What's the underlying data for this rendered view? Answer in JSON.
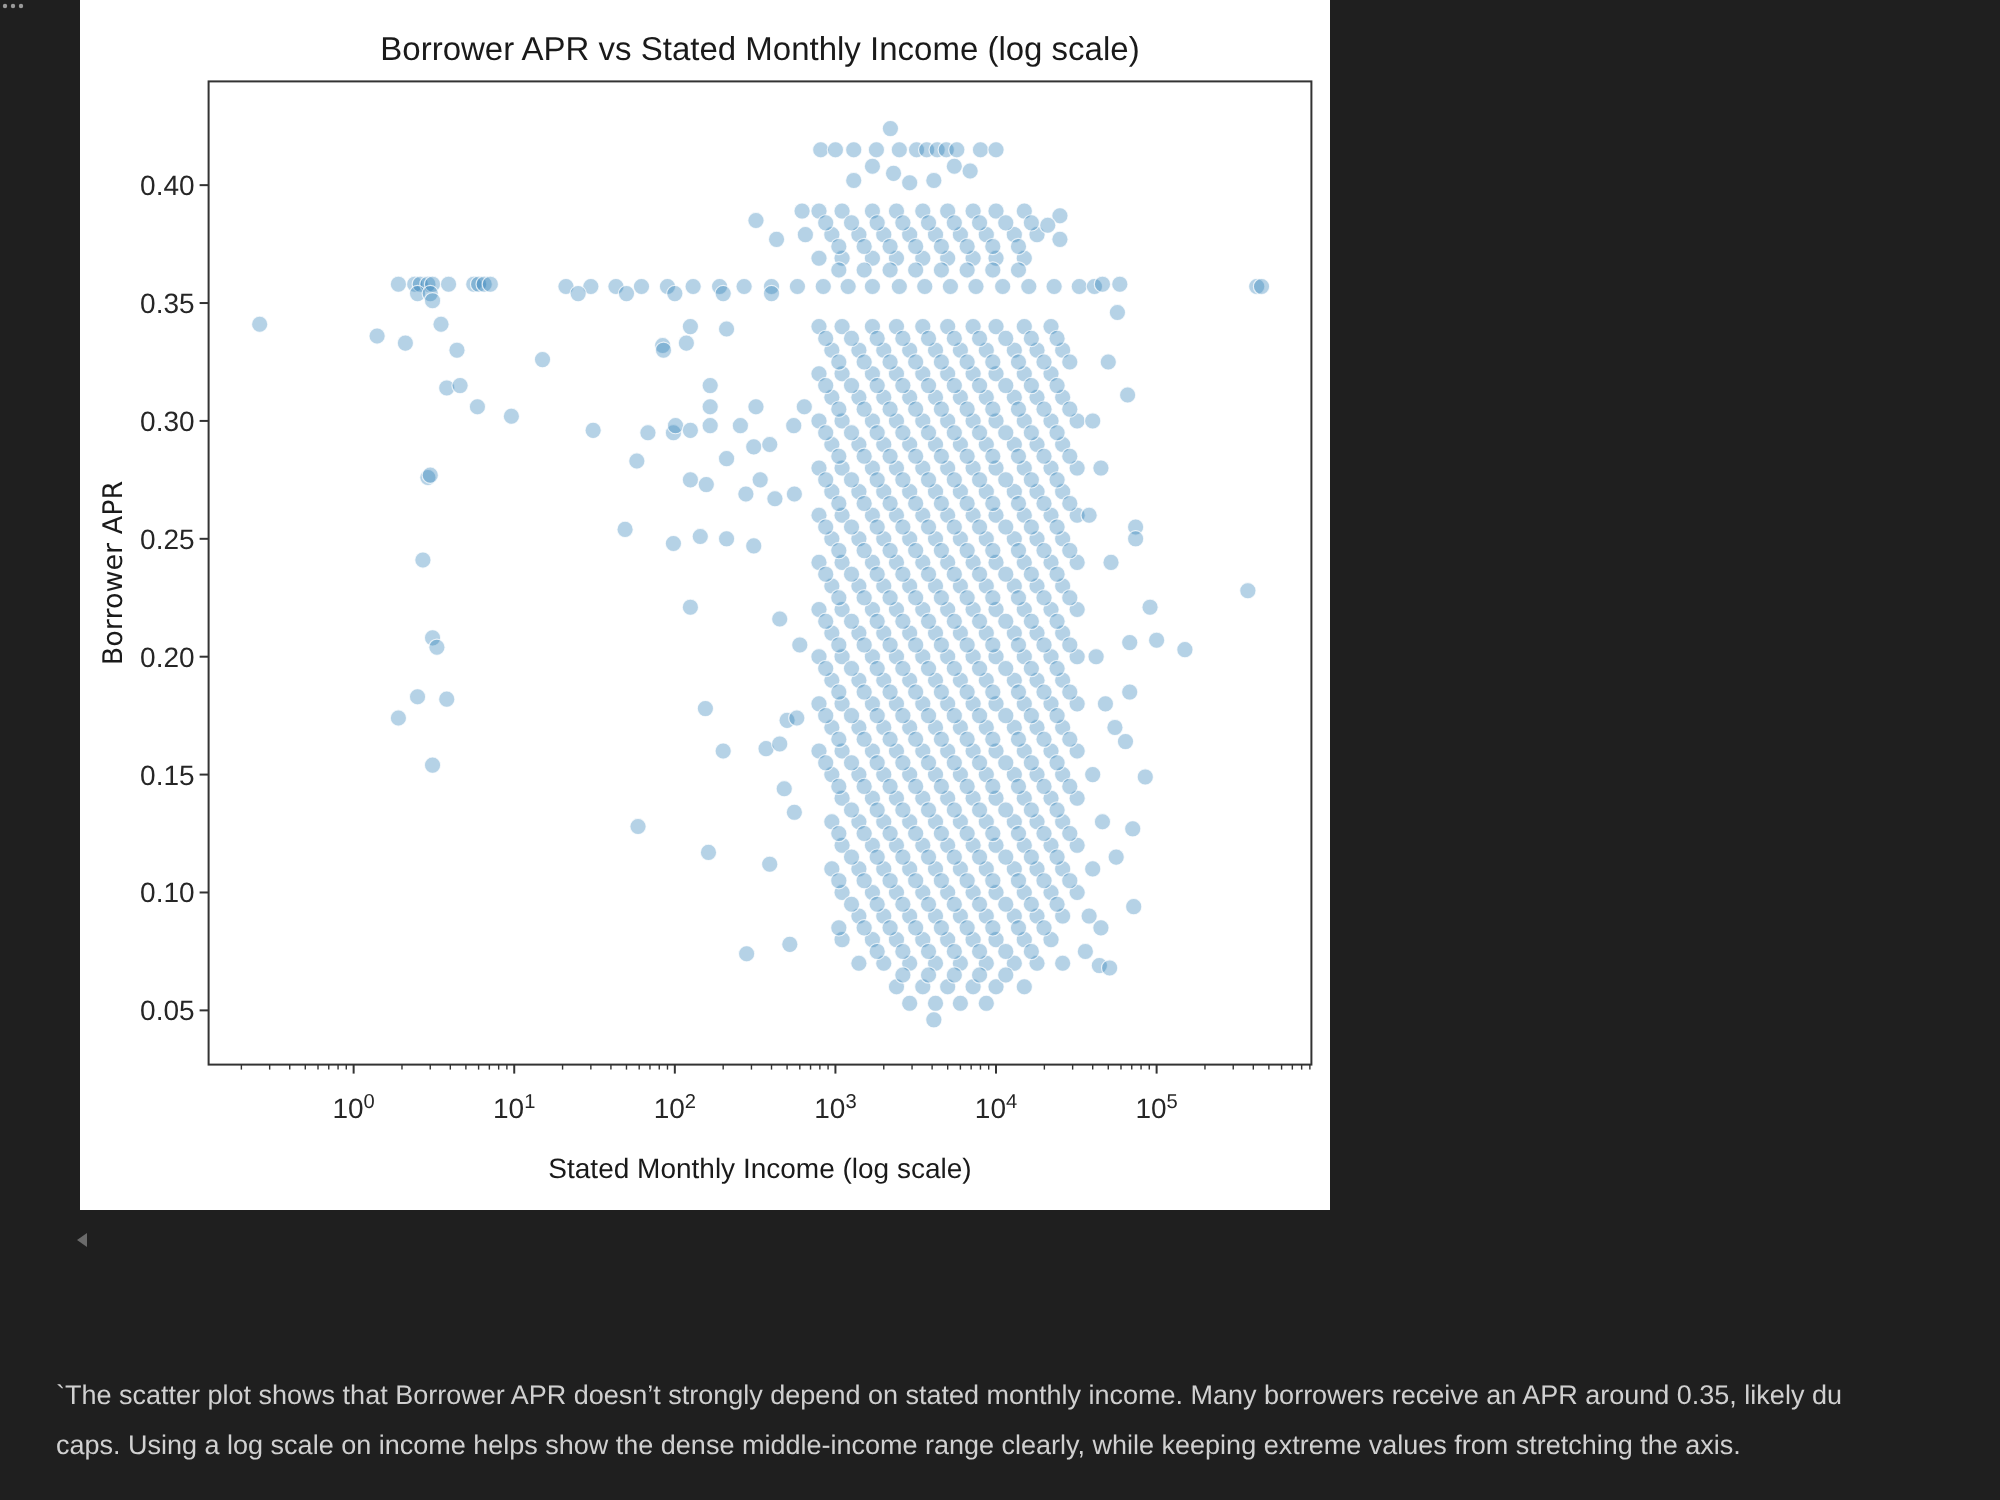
{
  "chart_data": {
    "type": "scatter",
    "title": "Borrower APR vs Stated Monthly Income (log scale)",
    "xlabel": "Stated Monthly Income (log scale)",
    "ylabel": "Borrower APR",
    "annotations": [
      "`The scatter plot shows that Borrower APR doesn’t strongly depend on stated monthly income. Many borrowers receive an APR around 0.35, likely du",
      "caps. Using a log scale on income helps show the dense middle-income range clearly, while keeping extreme values from stretching the axis."
    ],
    "log": "x",
    "marker": "circle",
    "color": "#1f77b4",
    "xlim": [
      0.125,
      920000
    ],
    "ylim": [
      0.027,
      0.444
    ],
    "xticks": [
      {
        "value": 0.2,
        "label": null
      },
      {
        "value": 0.3,
        "label": null
      },
      {
        "value": 0.4,
        "label": null
      },
      {
        "value": 0.5,
        "label": null
      },
      {
        "value": 0.6,
        "label": null
      },
      {
        "value": 0.7,
        "label": null
      },
      {
        "value": 0.8,
        "label": null
      },
      {
        "value": 0.9,
        "label": null
      },
      {
        "value": 1,
        "label": "10$^{0}$"
      },
      {
        "value": 2,
        "label": null
      },
      {
        "value": 3,
        "label": null
      },
      {
        "value": 4,
        "label": null
      },
      {
        "value": 5,
        "label": null
      },
      {
        "value": 6,
        "label": null
      },
      {
        "value": 7,
        "label": null
      },
      {
        "value": 8,
        "label": null
      },
      {
        "value": 9,
        "label": null
      },
      {
        "value": 10,
        "label": "10$^{1}$"
      },
      {
        "value": 20,
        "label": null
      },
      {
        "value": 30,
        "label": null
      },
      {
        "value": 40,
        "label": null
      },
      {
        "value": 50,
        "label": null
      },
      {
        "value": 60,
        "label": null
      },
      {
        "value": 70,
        "label": null
      },
      {
        "value": 80,
        "label": null
      },
      {
        "value": 90,
        "label": null
      },
      {
        "value": 100,
        "label": "10$^{2}$"
      },
      {
        "value": 200,
        "label": null
      },
      {
        "value": 300,
        "label": null
      },
      {
        "value": 400,
        "label": null
      },
      {
        "value": 500,
        "label": null
      },
      {
        "value": 600,
        "label": null
      },
      {
        "value": 700,
        "label": null
      },
      {
        "value": 800,
        "label": null
      },
      {
        "value": 900,
        "label": null
      },
      {
        "value": 1000,
        "label": "10$^{3}$"
      },
      {
        "value": 2000,
        "label": null
      },
      {
        "value": 3000,
        "label": null
      },
      {
        "value": 4000,
        "label": null
      },
      {
        "value": 5000,
        "label": null
      },
      {
        "value": 6000,
        "label": null
      },
      {
        "value": 7000,
        "label": null
      },
      {
        "value": 8000,
        "label": null
      },
      {
        "value": 9000,
        "label": null
      },
      {
        "value": 10000,
        "label": "10$^{4}$"
      },
      {
        "value": 20000,
        "label": null
      },
      {
        "value": 30000,
        "label": null
      },
      {
        "value": 40000,
        "label": null
      },
      {
        "value": 50000,
        "label": null
      },
      {
        "value": 60000,
        "label": null
      },
      {
        "value": 70000,
        "label": null
      },
      {
        "value": 80000,
        "label": null
      },
      {
        "value": 90000,
        "label": null
      },
      {
        "value": 100000,
        "label": "10$^{5}$"
      },
      {
        "value": 200000,
        "label": null
      },
      {
        "value": 300000,
        "label": null
      },
      {
        "value": 400000,
        "label": null
      },
      {
        "value": 500000,
        "label": null
      },
      {
        "value": 600000,
        "label": null
      },
      {
        "value": 700000,
        "label": null
      },
      {
        "value": 800000,
        "label": null
      },
      {
        "value": 900000,
        "label": null
      }
    ],
    "yticks": [
      0.05,
      {
        "value": 0.1,
        "label": "0.10"
      },
      0.15,
      {
        "value": 0.2,
        "label": "0.20"
      },
      0.25,
      {
        "value": 0.3,
        "label": "0.30"
      },
      0.35,
      {
        "value": 0.4,
        "label": "0.40"
      }
    ],
    "x": [
      0.26,
      1.9,
      2.4,
      2.6,
      2.9,
      3.1,
      3.9,
      5.6,
      6,
      6.5,
      7.1,
      2.5,
      3,
      3.1,
      1.4,
      2.1,
      3.5,
      4.4,
      3.8,
      4.6,
      5.9,
      9.6,
      15,
      2.9,
      3,
      2.7,
      3.1,
      3.3,
      2.5,
      3.8,
      1.9,
      3.1,
      59,
      84,
      68,
      98,
      98,
      31,
      58,
      49,
      125,
      210,
      118,
      85,
      166,
      166,
      101,
      125,
      166,
      256,
      320,
      310,
      390,
      550,
      640,
      125,
      157,
      210,
      277,
      340,
      420,
      555,
      144,
      210,
      310,
      125,
      155,
      200,
      162,
      370,
      450,
      500,
      575,
      480,
      555,
      390,
      280,
      520,
      450,
      600,
      320,
      430,
      21,
      30,
      43,
      62,
      90,
      130,
      190,
      270,
      400,
      580,
      840,
      1200,
      1700,
      2500,
      3600,
      5200,
      7500,
      11000,
      16000,
      23000,
      33000,
      41000,
      25,
      50,
      100,
      200,
      400,
      2200,
      810,
      1000,
      1300,
      1800,
      2500,
      3200,
      3700,
      4300,
      4900,
      5700,
      8000,
      10000,
      1300,
      1700,
      2300,
      2900,
      4100,
      5500,
      6900,
      620,
      790,
      1100,
      1700,
      2400,
      3500,
      5000,
      7200,
      10000,
      15000,
      650,
      950,
      1400,
      2000,
      2900,
      4200,
      6000,
      8700,
      13000,
      18000,
      790,
      1100,
      1700,
      2400,
      3500,
      5000,
      7200,
      10000,
      15000,
      25000,
      21000,
      25000,
      790,
      1100,
      1700,
      2400,
      3500,
      5000,
      7200,
      10000,
      15000,
      22000,
      950,
      1400,
      2000,
      2900,
      4200,
      6000,
      8700,
      13000,
      18000,
      26000,
      790,
      1100,
      1700,
      2400,
      3500,
      5000,
      7200,
      10000,
      15000,
      22000,
      950,
      1400,
      2000,
      2900,
      4200,
      6000,
      8700,
      13000,
      18000,
      26000,
      790,
      1100,
      1700,
      2400,
      3500,
      5000,
      7200,
      10000,
      15000,
      22000,
      32000,
      950,
      1400,
      2000,
      2900,
      4200,
      6000,
      8700,
      13000,
      18000,
      26000,
      790,
      1100,
      1700,
      2400,
      3500,
      5000,
      7200,
      10000,
      15000,
      22000,
      32000,
      950,
      1400,
      2000,
      2900,
      4200,
      6000,
      8700,
      13000,
      18000,
      26000,
      790,
      1100,
      1700,
      2400,
      3500,
      5000,
      7200,
      10000,
      15000,
      22000,
      32000,
      950,
      1400,
      2000,
      2900,
      4200,
      6000,
      8700,
      13000,
      18000,
      26000,
      790,
      1100,
      1700,
      2400,
      3500,
      5000,
      7200,
      10000,
      15000,
      22000,
      32000,
      950,
      1400,
      2000,
      2900,
      4200,
      6000,
      8700,
      13000,
      18000,
      26000,
      790,
      1100,
      1700,
      2400,
      3500,
      5000,
      7200,
      10000,
      15000,
      22000,
      32000,
      950,
      1400,
      2000,
      2900,
      4200,
      6000,
      8700,
      13000,
      18000,
      26000,
      790,
      1100,
      1700,
      2400,
      3500,
      5000,
      7200,
      10000,
      15000,
      22000,
      32000,
      950,
      1400,
      2000,
      2900,
      4200,
      6000,
      8700,
      13000,
      18000,
      26000,
      790,
      1100,
      1700,
      2400,
      3500,
      5000,
      7200,
      10000,
      15000,
      22000,
      32000,
      950,
      1400,
      2000,
      2900,
      4200,
      6000,
      8700,
      13000,
      18000,
      26000,
      790,
      1100,
      1700,
      2400,
      3500,
      5000,
      7200,
      10000,
      15000,
      22000,
      32000,
      950,
      1400,
      2000,
      2900,
      4200,
      6000,
      8700,
      13000,
      18000,
      26000,
      1100,
      1700,
      2400,
      3500,
      5000,
      7200,
      10000,
      15000,
      22000,
      32000,
      950,
      1400,
      2000,
      2900,
      4200,
      6000,
      8700,
      13000,
      18000,
      26000,
      1100,
      1700,
      2400,
      3500,
      5000,
      7200,
      10000,
      15000,
      22000,
      32000,
      950,
      1400,
      2000,
      2900,
      4200,
      6000,
      8700,
      13000,
      18000,
      26000,
      1100,
      1700,
      2400,
      3500,
      5000,
      7200,
      10000,
      15000,
      22000,
      32000,
      1400,
      2000,
      2900,
      4200,
      6000,
      8700,
      13000,
      18000,
      26000,
      1100,
      1700,
      2400,
      3500,
      5000,
      7200,
      10000,
      15000,
      22000,
      1400,
      2000,
      2900,
      4200,
      6000,
      8700,
      13000,
      18000,
      26000,
      2400,
      3500,
      5000,
      7200,
      10000,
      15000,
      2900,
      4200,
      6000,
      8700,
      4100,
      46000,
      59000,
      50000,
      57000,
      66000,
      74000,
      74000,
      91000,
      100000,
      150000,
      68000,
      68000,
      64000,
      85000,
      71000,
      72000,
      44000,
      51000,
      370000,
      420000,
      450000,
      40000,
      45000,
      38000,
      52000,
      42000,
      48000,
      55000,
      40000,
      46000,
      40000,
      38000,
      45000,
      36000,
      56000,
      870,
      1260,
      1820,
      2630,
      3800,
      5500,
      7900,
      11500,
      16600,
      24000,
      1050,
      1510,
      2190,
      3160,
      4570,
      6610,
      9550,
      13800,
      19900,
      28800,
      870,
      1260,
      1820,
      2630,
      3800,
      5500,
      7900,
      11500,
      16600,
      24000,
      1050,
      1510,
      2190,
      3160,
      4570,
      6610,
      9550,
      13800,
      19900,
      28800,
      870,
      1260,
      1820,
      2630,
      3800,
      5500,
      7900,
      11500,
      16600,
      24000,
      1050,
      1510,
      2190,
      3160,
      4570,
      6610,
      9550,
      13800,
      19900,
      28800,
      870,
      1260,
      1820,
      2630,
      3800,
      5500,
      7900,
      11500,
      16600,
      24000,
      1050,
      1510,
      2190,
      3160,
      4570,
      6610,
      9550,
      13800,
      19900,
      28800,
      870,
      1260,
      1820,
      2630,
      3800,
      5500,
      7900,
      11500,
      16600,
      24000,
      1050,
      1510,
      2190,
      3160,
      4570,
      6610,
      9550,
      13800,
      19900,
      28800,
      870,
      1260,
      1820,
      2630,
      3800,
      5500,
      7900,
      11500,
      16600,
      24000,
      1050,
      1510,
      2190,
      3160,
      4570,
      6610,
      9550,
      13800,
      19900,
      28800,
      870,
      1260,
      1820,
      2630,
      3800,
      5500,
      7900,
      11500,
      16600,
      24000,
      1050,
      1510,
      2190,
      3160,
      4570,
      6610,
      9550,
      13800,
      19900,
      28800,
      870,
      1260,
      1820,
      2630,
      3800,
      5500,
      7900,
      11500,
      16600,
      24000,
      1050,
      1510,
      2190,
      3160,
      4570,
      6610,
      9550,
      13800,
      19900,
      28800,
      870,
      1260,
      1820,
      2630,
      3800,
      5500,
      7900,
      11500,
      16600,
      24000,
      1050,
      1510,
      2190,
      3160,
      4570,
      6610,
      9550,
      13800,
      19900,
      28800,
      870,
      1260,
      1820,
      2630,
      3800,
      5500,
      7900,
      11500,
      16600,
      24000,
      1050,
      1510,
      2190,
      3160,
      4570,
      6610,
      9550,
      13800,
      19900,
      28800,
      1260,
      1820,
      2630,
      3800,
      5500,
      7900,
      11500,
      16600,
      24000,
      1050,
      1510,
      2190,
      3160,
      4570,
      6610,
      9550,
      13800,
      19900,
      28800,
      1260,
      1820,
      2630,
      3800,
      5500,
      7900,
      11500,
      16600,
      24000,
      1050,
      1510,
      2190,
      3160,
      4570,
      6610,
      9550,
      13800,
      19900,
      28800,
      1260,
      1820,
      2630,
      3800,
      5500,
      7900,
      11500,
      16600,
      24000,
      1050,
      1510,
      2190,
      3160,
      4570,
      6610,
      9550,
      13800,
      19900,
      1820,
      2630,
      3800,
      5500,
      7900,
      11500,
      16600,
      2630,
      3800,
      5500,
      7900,
      11500,
      870,
      1260,
      1820,
      2630,
      3800,
      5500,
      7900,
      11500,
      16600,
      1050,
      1510,
      2190,
      3160,
      4570,
      6610,
      9550,
      13800,
      1050,
      1510,
      2190,
      3160,
      4570,
      6610,
      9550,
      13800
    ],
    "values": [
      0.341,
      0.358,
      0.358,
      0.358,
      0.358,
      0.358,
      0.358,
      0.358,
      0.358,
      0.358,
      0.358,
      0.354,
      0.354,
      0.351,
      0.336,
      0.333,
      0.341,
      0.33,
      0.314,
      0.315,
      0.306,
      0.302,
      0.326,
      0.276,
      0.277,
      0.241,
      0.208,
      0.204,
      0.183,
      0.182,
      0.174,
      0.154,
      0.128,
      0.332,
      0.295,
      0.295,
      0.248,
      0.296,
      0.283,
      0.254,
      0.34,
      0.339,
      0.333,
      0.33,
      0.315,
      0.306,
      0.298,
      0.296,
      0.298,
      0.298,
      0.306,
      0.289,
      0.29,
      0.298,
      0.306,
      0.275,
      0.273,
      0.284,
      0.269,
      0.275,
      0.267,
      0.269,
      0.251,
      0.25,
      0.247,
      0.221,
      0.178,
      0.16,
      0.117,
      0.161,
      0.163,
      0.173,
      0.174,
      0.144,
      0.134,
      0.112,
      0.074,
      0.078,
      0.216,
      0.205,
      0.385,
      0.377,
      0.357,
      0.357,
      0.357,
      0.357,
      0.357,
      0.357,
      0.357,
      0.357,
      0.357,
      0.357,
      0.357,
      0.357,
      0.357,
      0.357,
      0.357,
      0.357,
      0.357,
      0.357,
      0.357,
      0.357,
      0.357,
      0.357,
      0.354,
      0.354,
      0.354,
      0.354,
      0.354,
      0.424,
      0.415,
      0.415,
      0.415,
      0.415,
      0.415,
      0.415,
      0.415,
      0.415,
      0.415,
      0.415,
      0.415,
      0.415,
      0.402,
      0.408,
      0.405,
      0.401,
      0.402,
      0.408,
      0.406,
      0.389,
      0.389,
      0.389,
      0.389,
      0.389,
      0.389,
      0.389,
      0.389,
      0.389,
      0.389,
      0.379,
      0.379,
      0.379,
      0.379,
      0.379,
      0.379,
      0.379,
      0.379,
      0.379,
      0.379,
      0.369,
      0.369,
      0.369,
      0.369,
      0.369,
      0.369,
      0.369,
      0.369,
      0.369,
      0.387,
      0.383,
      0.377,
      0.34,
      0.34,
      0.34,
      0.34,
      0.34,
      0.34,
      0.34,
      0.34,
      0.34,
      0.34,
      0.33,
      0.33,
      0.33,
      0.33,
      0.33,
      0.33,
      0.33,
      0.33,
      0.33,
      0.33,
      0.32,
      0.32,
      0.32,
      0.32,
      0.32,
      0.32,
      0.32,
      0.32,
      0.32,
      0.32,
      0.31,
      0.31,
      0.31,
      0.31,
      0.31,
      0.31,
      0.31,
      0.31,
      0.31,
      0.31,
      0.3,
      0.3,
      0.3,
      0.3,
      0.3,
      0.3,
      0.3,
      0.3,
      0.3,
      0.3,
      0.3,
      0.29,
      0.29,
      0.29,
      0.29,
      0.29,
      0.29,
      0.29,
      0.29,
      0.29,
      0.29,
      0.28,
      0.28,
      0.28,
      0.28,
      0.28,
      0.28,
      0.28,
      0.28,
      0.28,
      0.28,
      0.28,
      0.27,
      0.27,
      0.27,
      0.27,
      0.27,
      0.27,
      0.27,
      0.27,
      0.27,
      0.27,
      0.26,
      0.26,
      0.26,
      0.26,
      0.26,
      0.26,
      0.26,
      0.26,
      0.26,
      0.26,
      0.26,
      0.25,
      0.25,
      0.25,
      0.25,
      0.25,
      0.25,
      0.25,
      0.25,
      0.25,
      0.25,
      0.24,
      0.24,
      0.24,
      0.24,
      0.24,
      0.24,
      0.24,
      0.24,
      0.24,
      0.24,
      0.24,
      0.23,
      0.23,
      0.23,
      0.23,
      0.23,
      0.23,
      0.23,
      0.23,
      0.23,
      0.23,
      0.22,
      0.22,
      0.22,
      0.22,
      0.22,
      0.22,
      0.22,
      0.22,
      0.22,
      0.22,
      0.22,
      0.21,
      0.21,
      0.21,
      0.21,
      0.21,
      0.21,
      0.21,
      0.21,
      0.21,
      0.21,
      0.2,
      0.2,
      0.2,
      0.2,
      0.2,
      0.2,
      0.2,
      0.2,
      0.2,
      0.2,
      0.2,
      0.19,
      0.19,
      0.19,
      0.19,
      0.19,
      0.19,
      0.19,
      0.19,
      0.19,
      0.19,
      0.18,
      0.18,
      0.18,
      0.18,
      0.18,
      0.18,
      0.18,
      0.18,
      0.18,
      0.18,
      0.18,
      0.17,
      0.17,
      0.17,
      0.17,
      0.17,
      0.17,
      0.17,
      0.17,
      0.17,
      0.17,
      0.16,
      0.16,
      0.16,
      0.16,
      0.16,
      0.16,
      0.16,
      0.16,
      0.16,
      0.16,
      0.16,
      0.15,
      0.15,
      0.15,
      0.15,
      0.15,
      0.15,
      0.15,
      0.15,
      0.15,
      0.15,
      0.14,
      0.14,
      0.14,
      0.14,
      0.14,
      0.14,
      0.14,
      0.14,
      0.14,
      0.14,
      0.13,
      0.13,
      0.13,
      0.13,
      0.13,
      0.13,
      0.13,
      0.13,
      0.13,
      0.13,
      0.12,
      0.12,
      0.12,
      0.12,
      0.12,
      0.12,
      0.12,
      0.12,
      0.12,
      0.12,
      0.11,
      0.11,
      0.11,
      0.11,
      0.11,
      0.11,
      0.11,
      0.11,
      0.11,
      0.11,
      0.1,
      0.1,
      0.1,
      0.1,
      0.1,
      0.1,
      0.1,
      0.1,
      0.1,
      0.1,
      0.09,
      0.09,
      0.09,
      0.09,
      0.09,
      0.09,
      0.09,
      0.09,
      0.09,
      0.08,
      0.08,
      0.08,
      0.08,
      0.08,
      0.08,
      0.08,
      0.08,
      0.08,
      0.07,
      0.07,
      0.07,
      0.07,
      0.07,
      0.07,
      0.07,
      0.07,
      0.07,
      0.06,
      0.06,
      0.06,
      0.06,
      0.06,
      0.06,
      0.053,
      0.053,
      0.053,
      0.053,
      0.046,
      0.358,
      0.358,
      0.325,
      0.346,
      0.311,
      0.255,
      0.25,
      0.221,
      0.207,
      0.203,
      0.206,
      0.185,
      0.164,
      0.149,
      0.127,
      0.094,
      0.069,
      0.068,
      0.228,
      0.357,
      0.357,
      0.3,
      0.28,
      0.26,
      0.24,
      0.2,
      0.18,
      0.17,
      0.15,
      0.13,
      0.11,
      0.09,
      0.085,
      0.075,
      0.115,
      0.335,
      0.335,
      0.335,
      0.335,
      0.335,
      0.335,
      0.335,
      0.335,
      0.335,
      0.335,
      0.325,
      0.325,
      0.325,
      0.325,
      0.325,
      0.325,
      0.325,
      0.325,
      0.325,
      0.325,
      0.315,
      0.315,
      0.315,
      0.315,
      0.315,
      0.315,
      0.315,
      0.315,
      0.315,
      0.315,
      0.305,
      0.305,
      0.305,
      0.305,
      0.305,
      0.305,
      0.305,
      0.305,
      0.305,
      0.305,
      0.295,
      0.295,
      0.295,
      0.295,
      0.295,
      0.295,
      0.295,
      0.295,
      0.295,
      0.295,
      0.285,
      0.285,
      0.285,
      0.285,
      0.285,
      0.285,
      0.285,
      0.285,
      0.285,
      0.285,
      0.275,
      0.275,
      0.275,
      0.275,
      0.275,
      0.275,
      0.275,
      0.275,
      0.275,
      0.275,
      0.265,
      0.265,
      0.265,
      0.265,
      0.265,
      0.265,
      0.265,
      0.265,
      0.265,
      0.265,
      0.255,
      0.255,
      0.255,
      0.255,
      0.255,
      0.255,
      0.255,
      0.255,
      0.255,
      0.255,
      0.245,
      0.245,
      0.245,
      0.245,
      0.245,
      0.245,
      0.245,
      0.245,
      0.245,
      0.245,
      0.235,
      0.235,
      0.235,
      0.235,
      0.235,
      0.235,
      0.235,
      0.235,
      0.235,
      0.235,
      0.225,
      0.225,
      0.225,
      0.225,
      0.225,
      0.225,
      0.225,
      0.225,
      0.225,
      0.225,
      0.215,
      0.215,
      0.215,
      0.215,
      0.215,
      0.215,
      0.215,
      0.215,
      0.215,
      0.215,
      0.205,
      0.205,
      0.205,
      0.205,
      0.205,
      0.205,
      0.205,
      0.205,
      0.205,
      0.205,
      0.195,
      0.195,
      0.195,
      0.195,
      0.195,
      0.195,
      0.195,
      0.195,
      0.195,
      0.195,
      0.185,
      0.185,
      0.185,
      0.185,
      0.185,
      0.185,
      0.185,
      0.185,
      0.185,
      0.185,
      0.175,
      0.175,
      0.175,
      0.175,
      0.175,
      0.175,
      0.175,
      0.175,
      0.175,
      0.175,
      0.165,
      0.165,
      0.165,
      0.165,
      0.165,
      0.165,
      0.165,
      0.165,
      0.165,
      0.165,
      0.155,
      0.155,
      0.155,
      0.155,
      0.155,
      0.155,
      0.155,
      0.155,
      0.155,
      0.155,
      0.145,
      0.145,
      0.145,
      0.145,
      0.145,
      0.145,
      0.145,
      0.145,
      0.145,
      0.145,
      0.135,
      0.135,
      0.135,
      0.135,
      0.135,
      0.135,
      0.135,
      0.135,
      0.135,
      0.125,
      0.125,
      0.125,
      0.125,
      0.125,
      0.125,
      0.125,
      0.125,
      0.125,
      0.125,
      0.115,
      0.115,
      0.115,
      0.115,
      0.115,
      0.115,
      0.115,
      0.115,
      0.115,
      0.105,
      0.105,
      0.105,
      0.105,
      0.105,
      0.105,
      0.105,
      0.105,
      0.105,
      0.105,
      0.095,
      0.095,
      0.095,
      0.095,
      0.095,
      0.095,
      0.095,
      0.095,
      0.095,
      0.085,
      0.085,
      0.085,
      0.085,
      0.085,
      0.085,
      0.085,
      0.085,
      0.085,
      0.075,
      0.075,
      0.075,
      0.075,
      0.075,
      0.075,
      0.075,
      0.065,
      0.065,
      0.065,
      0.065,
      0.065,
      0.384,
      0.384,
      0.384,
      0.384,
      0.384,
      0.384,
      0.384,
      0.384,
      0.384,
      0.374,
      0.374,
      0.374,
      0.374,
      0.374,
      0.374,
      0.374,
      0.374,
      0.364,
      0.364,
      0.364,
      0.364,
      0.364,
      0.364,
      0.364,
      0.364
    ]
  }
}
